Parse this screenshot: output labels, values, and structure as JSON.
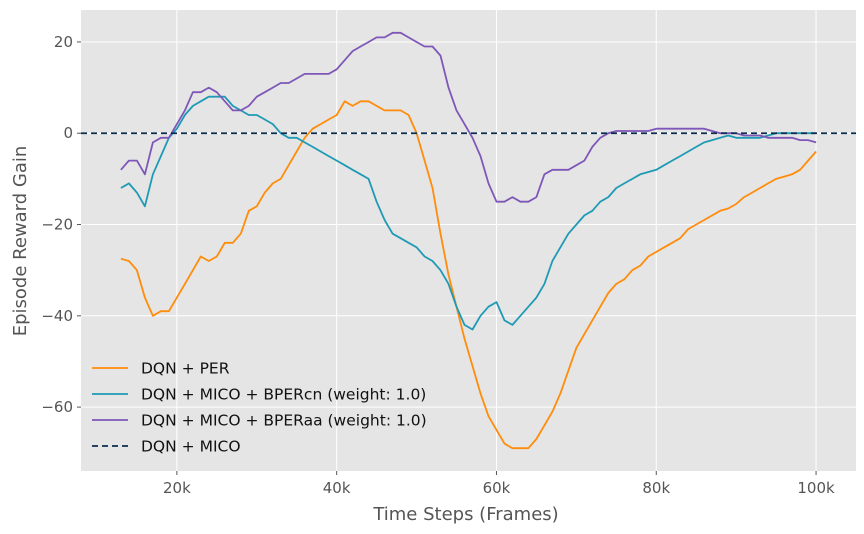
{
  "chart_data": {
    "type": "line",
    "xlabel": "Time Steps (Frames)",
    "ylabel": "Episode Reward Gain",
    "xlim": [
      8000,
      105000
    ],
    "ylim": [
      -74,
      27
    ],
    "xticks": [
      20000,
      40000,
      60000,
      80000,
      100000
    ],
    "xtick_labels": [
      "20k",
      "40k",
      "60k",
      "80k",
      "100k"
    ],
    "yticks": [
      20,
      0,
      -20,
      -40,
      -60
    ],
    "ytick_labels": [
      "20",
      "0",
      "−20",
      "−40",
      "−60"
    ],
    "grid": true,
    "legend_position": "bottom-left",
    "baseline": {
      "name": "DQN + MICO",
      "y": 0,
      "color": "#0b2e4f",
      "style": "dashed"
    },
    "series": [
      {
        "name": "DQN + PER",
        "color": "#ff8c0a",
        "x": [
          13000,
          14000,
          15000,
          16000,
          17000,
          18000,
          19000,
          20000,
          21000,
          22000,
          23000,
          24000,
          25000,
          26000,
          27000,
          28000,
          29000,
          30000,
          31000,
          32000,
          33000,
          34000,
          35000,
          36000,
          37000,
          38000,
          39000,
          40000,
          41000,
          42000,
          43000,
          44000,
          45000,
          46000,
          47000,
          48000,
          49000,
          50000,
          51000,
          52000,
          53000,
          54000,
          55000,
          56000,
          57000,
          58000,
          59000,
          60000,
          61000,
          62000,
          63000,
          64000,
          65000,
          66000,
          67000,
          68000,
          69000,
          70000,
          71000,
          72000,
          73000,
          74000,
          75000,
          76000,
          77000,
          78000,
          79000,
          80000,
          81000,
          82000,
          83000,
          84000,
          85000,
          86000,
          87000,
          88000,
          89000,
          90000,
          91000,
          92000,
          93000,
          94000,
          95000,
          96000,
          97000,
          98000,
          99000,
          100000
        ],
        "y": [
          -27.5,
          -28,
          -30,
          -36,
          -40,
          -39,
          -39,
          -36,
          -33,
          -30,
          -27,
          -28,
          -27,
          -24,
          -24,
          -22,
          -17,
          -16,
          -13,
          -11,
          -10,
          -7,
          -4,
          -1,
          1,
          2,
          3,
          4,
          7,
          6,
          7,
          7,
          6,
          5,
          5,
          5,
          4,
          0,
          -6,
          -12,
          -22,
          -31,
          -38,
          -45,
          -51,
          -57,
          -62,
          -65,
          -68,
          -69,
          -69,
          -69,
          -67,
          -64,
          -61,
          -57,
          -52,
          -47,
          -44,
          -41,
          -38,
          -35,
          -33,
          -32,
          -30,
          -29,
          -27,
          -26,
          -25,
          -24,
          -23,
          -21,
          -20,
          -19,
          -18,
          -17,
          -16.5,
          -15.5,
          -14,
          -13,
          -12,
          -11,
          -10,
          -9.5,
          -9,
          -8,
          -6,
          -4
        ]
      },
      {
        "name": "DQN + MICO + BPERcn (weight: 1.0)",
        "color": "#1f9ab5",
        "x": [
          13000,
          14000,
          15000,
          16000,
          17000,
          18000,
          19000,
          20000,
          21000,
          22000,
          23000,
          24000,
          25000,
          26000,
          27000,
          28000,
          29000,
          30000,
          31000,
          32000,
          33000,
          34000,
          35000,
          36000,
          37000,
          38000,
          39000,
          40000,
          41000,
          42000,
          43000,
          44000,
          45000,
          46000,
          47000,
          48000,
          49000,
          50000,
          51000,
          52000,
          53000,
          54000,
          55000,
          56000,
          57000,
          58000,
          59000,
          60000,
          61000,
          62000,
          63000,
          64000,
          65000,
          66000,
          67000,
          68000,
          69000,
          70000,
          71000,
          72000,
          73000,
          74000,
          75000,
          76000,
          77000,
          78000,
          79000,
          80000,
          81000,
          82000,
          83000,
          84000,
          85000,
          86000,
          87000,
          88000,
          89000,
          90000,
          91000,
          92000,
          93000,
          94000,
          95000,
          96000,
          97000,
          98000,
          99000,
          100000
        ],
        "y": [
          -12,
          -11,
          -13,
          -16,
          -9,
          -5,
          -1,
          1,
          4,
          6,
          7,
          8,
          8,
          8,
          6,
          5,
          4,
          4,
          3,
          2,
          0,
          -1,
          -1,
          -2,
          -3,
          -4,
          -5,
          -6,
          -7,
          -8,
          -9,
          -10,
          -15,
          -19,
          -22,
          -23,
          -24,
          -25,
          -27,
          -28,
          -30,
          -33,
          -38,
          -42,
          -43,
          -40,
          -38,
          -37,
          -41,
          -42,
          -40,
          -38,
          -36,
          -33,
          -28,
          -25,
          -22,
          -20,
          -18,
          -17,
          -15,
          -14,
          -12,
          -11,
          -10,
          -9,
          -8.5,
          -8,
          -7,
          -6,
          -5,
          -4,
          -3,
          -2,
          -1.5,
          -1,
          -0.5,
          -1,
          -1,
          -1,
          -1,
          -0.5,
          0,
          0,
          0,
          0,
          0,
          0
        ]
      },
      {
        "name": "DQN + MICO + BPERaa (weight: 1.0)",
        "color": "#7e57b8",
        "x": [
          13000,
          14000,
          15000,
          16000,
          17000,
          18000,
          19000,
          20000,
          21000,
          22000,
          23000,
          24000,
          25000,
          26000,
          27000,
          28000,
          29000,
          30000,
          31000,
          32000,
          33000,
          34000,
          35000,
          36000,
          37000,
          38000,
          39000,
          40000,
          41000,
          42000,
          43000,
          44000,
          45000,
          46000,
          47000,
          48000,
          49000,
          50000,
          51000,
          52000,
          53000,
          54000,
          55000,
          56000,
          57000,
          58000,
          59000,
          60000,
          61000,
          62000,
          63000,
          64000,
          65000,
          66000,
          67000,
          68000,
          69000,
          70000,
          71000,
          72000,
          73000,
          74000,
          75000,
          76000,
          77000,
          78000,
          79000,
          80000,
          81000,
          82000,
          83000,
          84000,
          85000,
          86000,
          87000,
          88000,
          89000,
          90000,
          91000,
          92000,
          93000,
          94000,
          95000,
          96000,
          97000,
          98000,
          99000,
          100000
        ],
        "y": [
          -8,
          -6,
          -6,
          -9,
          -2,
          -1,
          -1,
          2,
          5,
          9,
          9,
          10,
          9,
          7,
          5,
          5,
          6,
          8,
          9,
          10,
          11,
          11,
          12,
          13,
          13,
          13,
          13,
          14,
          16,
          18,
          19,
          20,
          21,
          21,
          22,
          22,
          21,
          20,
          19,
          19,
          17,
          10,
          5,
          2,
          -1,
          -5,
          -11,
          -15,
          -15,
          -14,
          -15,
          -15,
          -14,
          -9,
          -8,
          -8,
          -8,
          -7,
          -6,
          -3,
          -1,
          0,
          0.5,
          0.5,
          0.5,
          0.5,
          0.5,
          1,
          1,
          1,
          1,
          1,
          1,
          1,
          0.5,
          0,
          0,
          0,
          -0.5,
          -0.5,
          -0.5,
          -1,
          -1,
          -1,
          -1,
          -1.5,
          -1.5,
          -2
        ]
      }
    ]
  }
}
